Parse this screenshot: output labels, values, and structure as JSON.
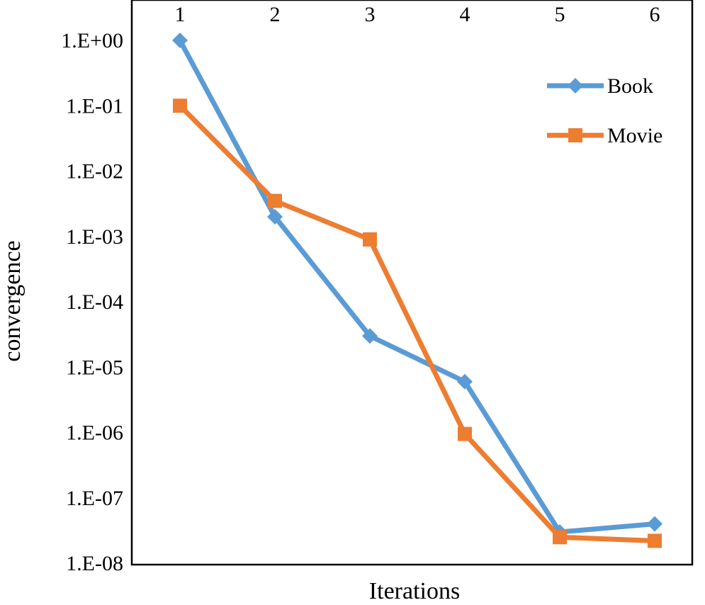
{
  "chart_data": {
    "type": "line",
    "title": "",
    "xlabel": "Iterations",
    "ylabel": "convergence",
    "x": [
      1,
      2,
      3,
      4,
      5,
      6
    ],
    "x_tick_labels": [
      "1",
      "2",
      "3",
      "4",
      "5",
      "6"
    ],
    "x_axis_position": "top",
    "y_scale": "log",
    "ylim": [
      1e-08,
      1
    ],
    "y_tick_values": [
      1,
      0.1,
      0.01,
      0.001,
      0.0001,
      1e-05,
      1e-06,
      1e-07,
      1e-08
    ],
    "y_tick_labels": [
      "1.E+00",
      "1.E-01",
      "1.E-02",
      "1.E-03",
      "1.E-04",
      "1.E-05",
      "1.E-06",
      "1.E-07",
      "1.E-08"
    ],
    "grid": false,
    "legend_position": "top-right",
    "series": [
      {
        "name": "Book",
        "marker": "diamond",
        "color": "#5B9BD5",
        "values": [
          1.0,
          0.002,
          3e-05,
          6e-06,
          3e-08,
          4e-08
        ]
      },
      {
        "name": "Movie",
        "marker": "square",
        "color": "#ED7D31",
        "values": [
          0.1,
          0.0035,
          0.0009,
          9.5e-07,
          2.5e-08,
          2.2e-08
        ]
      }
    ]
  }
}
